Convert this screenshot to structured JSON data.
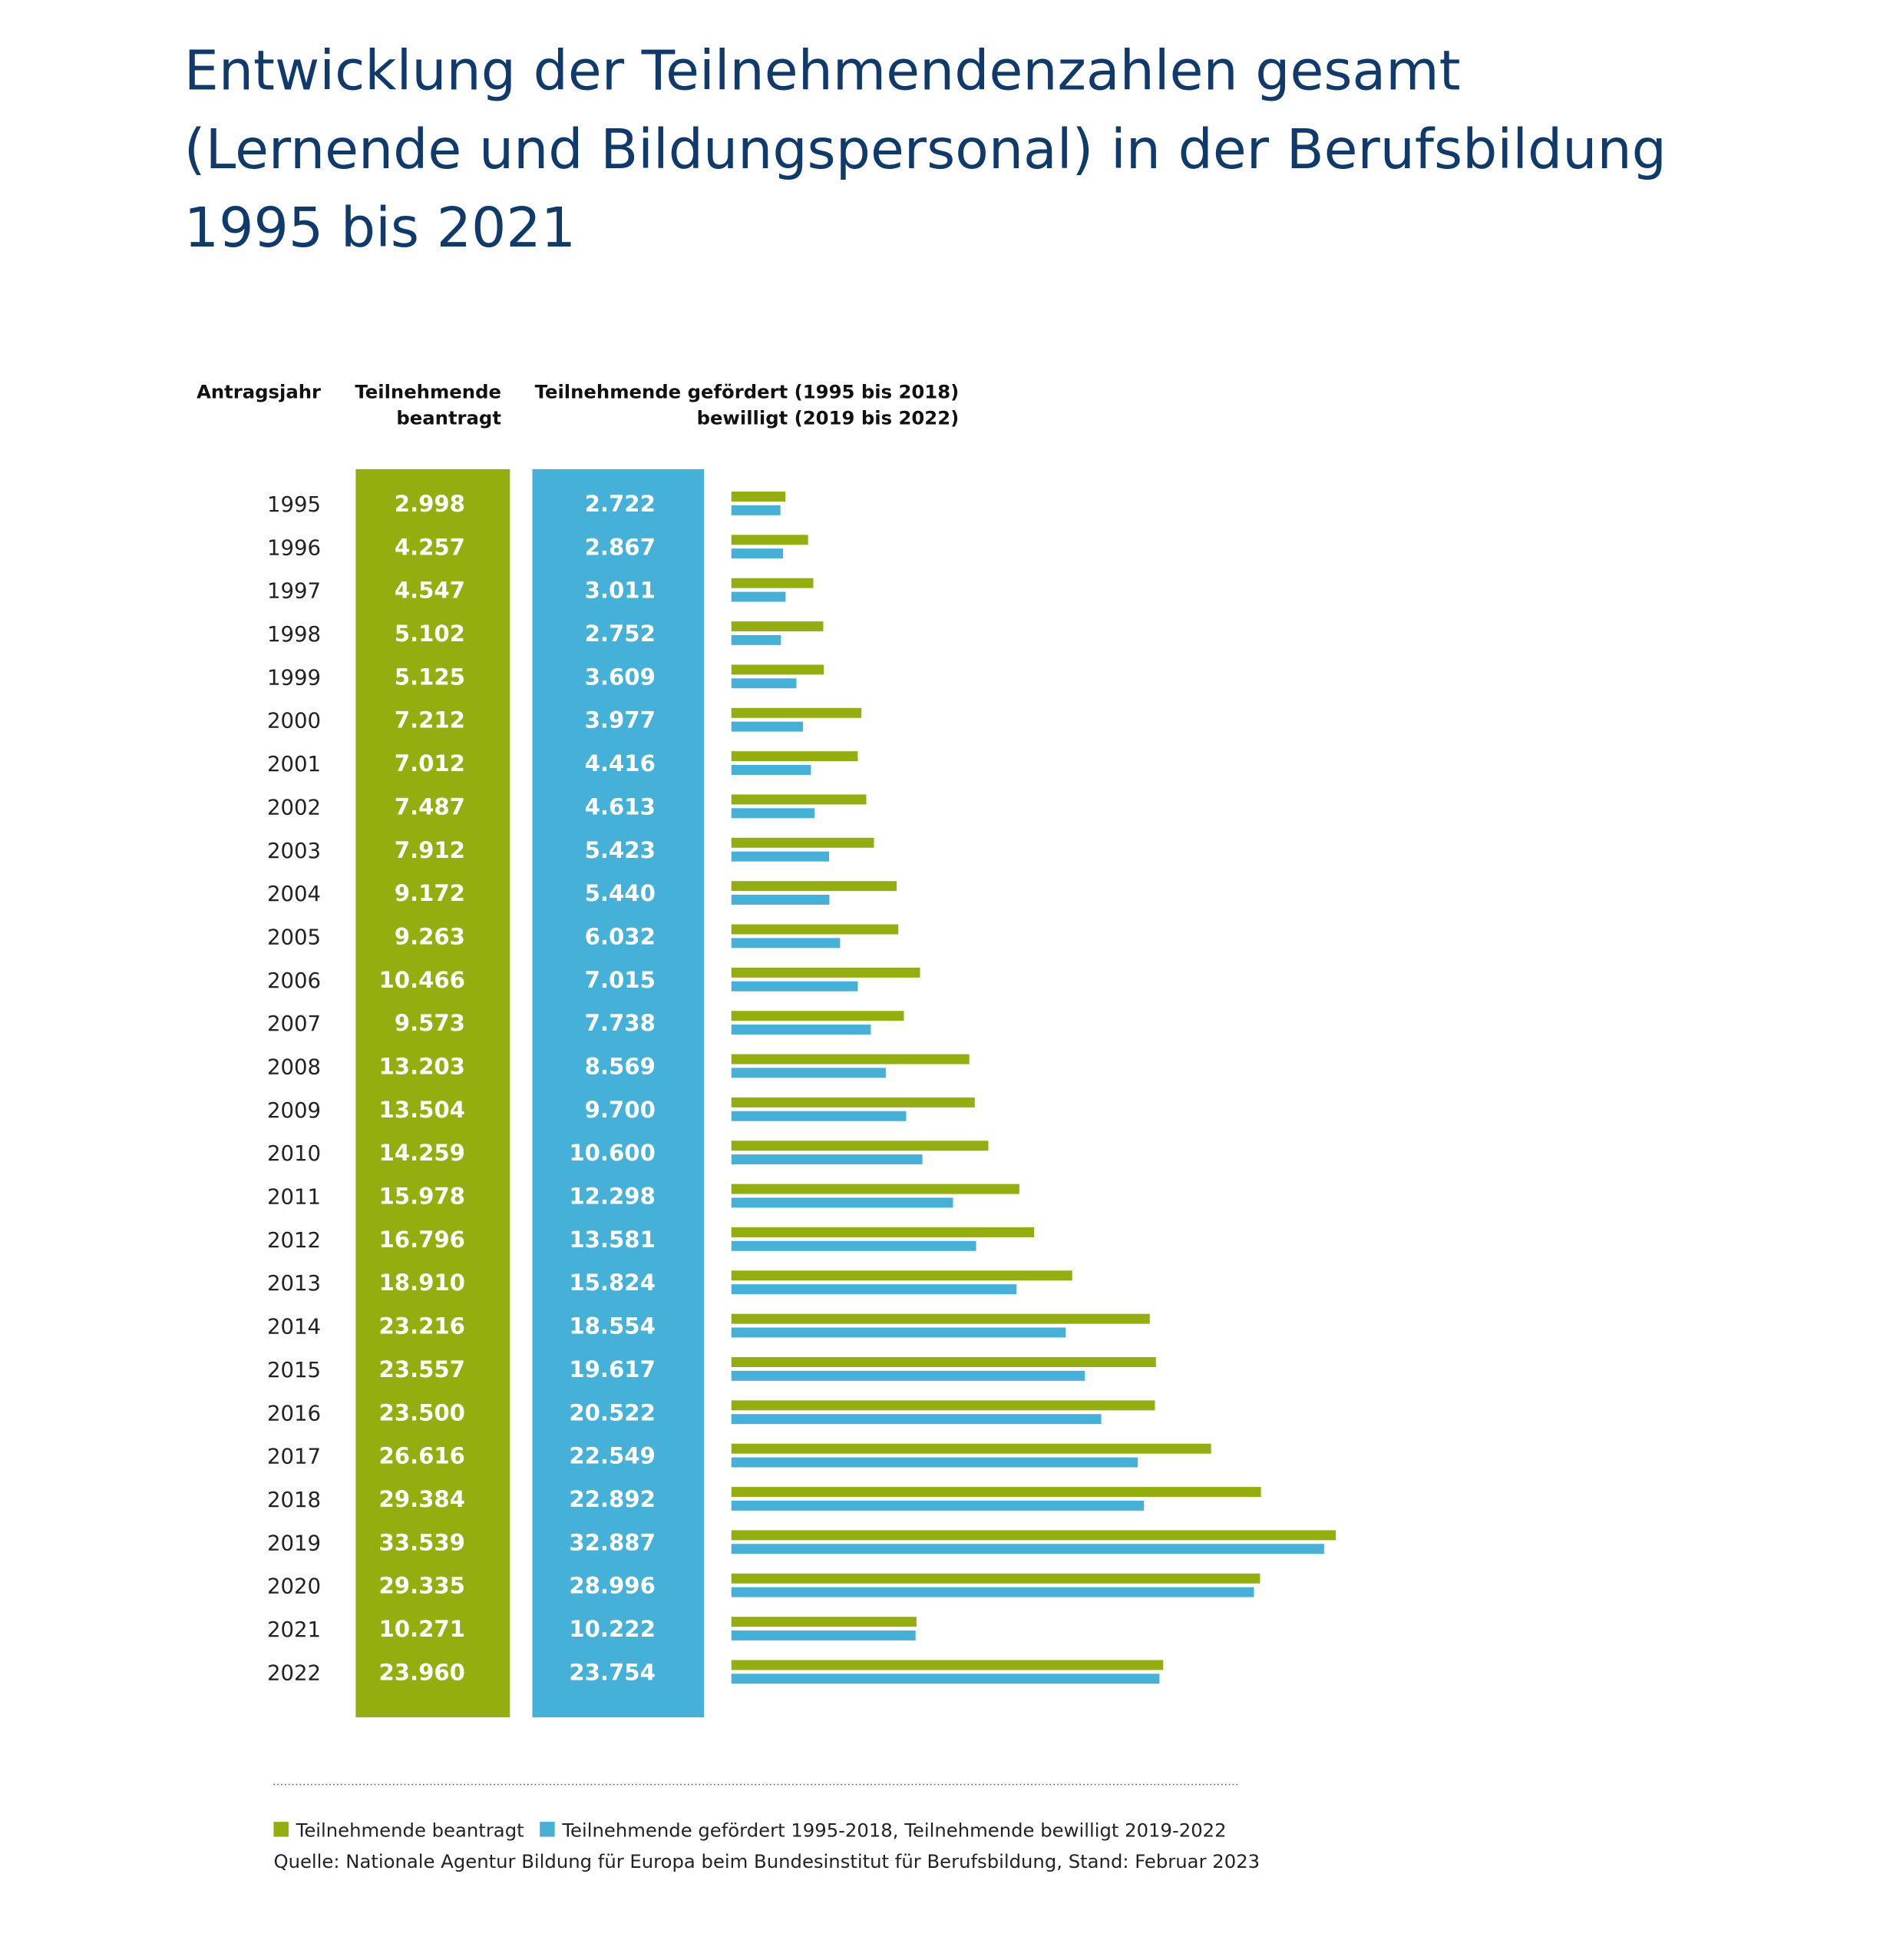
{
  "chart_data": {
    "type": "bar",
    "title": [
      "Entwicklung der Teilnehmendenzahlen gesamt",
      "(Lernende und Bildungspersonal) in der Berufsbildung",
      "1995 bis 2021"
    ],
    "column_headers": [
      [
        "Antragsjahr"
      ],
      [
        "Teilnehmende",
        "beantragt"
      ],
      [
        "Teilnehmende gefördert (1995 bis 2018)",
        "bewilligt (2019 bis 2022)"
      ]
    ],
    "categories": [
      "1995",
      "1996",
      "1997",
      "1998",
      "1999",
      "2000",
      "2001",
      "2002",
      "2003",
      "2004",
      "2005",
      "2006",
      "2007",
      "2008",
      "2009",
      "2010",
      "2011",
      "2012",
      "2013",
      "2014",
      "2015",
      "2016",
      "2017",
      "2018",
      "2019",
      "2020",
      "2021",
      "2022"
    ],
    "series": [
      {
        "name": "Teilnehmende beantragt",
        "color": "#93ae0e",
        "values": [
          2998,
          4257,
          4547,
          5102,
          5125,
          7212,
          7012,
          7487,
          7912,
          9172,
          9263,
          10466,
          9573,
          13203,
          13504,
          14259,
          15978,
          16796,
          18910,
          23216,
          23557,
          23500,
          26616,
          29384,
          33539,
          29335,
          10271,
          23960
        ],
        "value_labels": [
          "2.998",
          "4.257",
          "4.547",
          "5.102",
          "5.125",
          "7.212",
          "7.012",
          "7.487",
          "7.912",
          "9.172",
          "9.263",
          "10.466",
          "9.573",
          "13.203",
          "13.504",
          "14.259",
          "15.978",
          "16.796",
          "18.910",
          "23.216",
          "23.557",
          "23.500",
          "26.616",
          "29.384",
          "33.539",
          "29.335",
          "10.271",
          "23.960"
        ]
      },
      {
        "name": "Teilnehmende gefördert 1995-2018, Teilnehmende bewilligt 2019-2022",
        "color": "#45b0d8",
        "values": [
          2722,
          2867,
          3011,
          2752,
          3609,
          3977,
          4416,
          4613,
          5423,
          5440,
          6032,
          7015,
          7738,
          8569,
          9700,
          10600,
          12298,
          13581,
          15824,
          18554,
          19617,
          20522,
          22549,
          22892,
          32887,
          28996,
          10222,
          23754
        ],
        "value_labels": [
          "2.722",
          "2.867",
          "3.011",
          "2.752",
          "3.609",
          "3.977",
          "4.416",
          "4.613",
          "5.423",
          "5.440",
          "6.032",
          "7.015",
          "7.738",
          "8.569",
          "9.700",
          "10.600",
          "12.298",
          "13.581",
          "15.824",
          "18.554",
          "19.617",
          "20.522",
          "22.549",
          "22.892",
          "32.887",
          "28.996",
          "10.222",
          "23.754"
        ]
      }
    ],
    "source": "Quelle: Nationale Agentur Bildung für Europa beim Bundesinstitut für Berufsbildung, Stand: Februar 2023"
  }
}
